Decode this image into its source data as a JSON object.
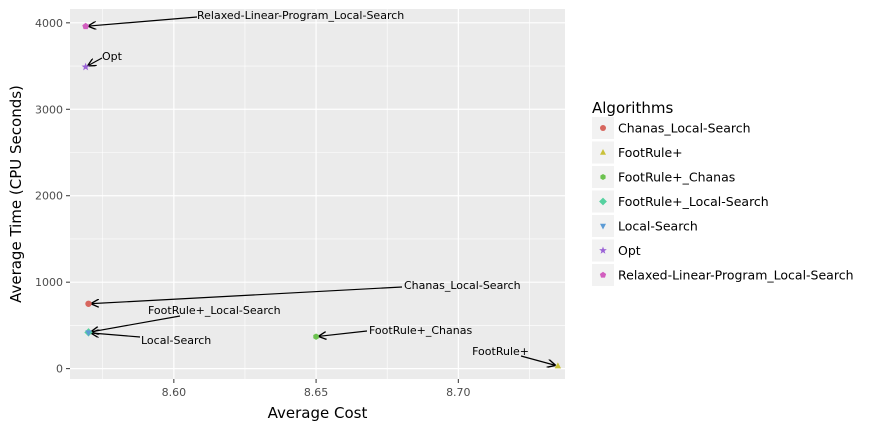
{
  "chart_data": {
    "type": "scatter",
    "title": "",
    "xlabel": "Average Cost",
    "ylabel": "Average Time (CPU Seconds)",
    "xlim": [
      8.5635,
      8.7375
    ],
    "ylim": [
      -120,
      4160
    ],
    "xticks": [
      8.6,
      8.65,
      8.7
    ],
    "xtick_labels": [
      "8.60",
      "8.65",
      "8.70"
    ],
    "yticks": [
      0,
      1000,
      2000,
      3000,
      4000
    ],
    "ytick_labels": [
      "0",
      "1000",
      "2000",
      "3000",
      "4000"
    ],
    "grid": true,
    "legend": {
      "title": "Algorithms",
      "position": "right"
    },
    "series": [
      {
        "name": "Chanas_Local-Search",
        "marker": "circle",
        "color": "#D7665E",
        "x": 8.57,
        "y": 750
      },
      {
        "name": "FootRule+",
        "marker": "triangle",
        "color": "#C9C13A",
        "x": 8.735,
        "y": 30
      },
      {
        "name": "FootRule+_Chanas",
        "marker": "hexagon",
        "color": "#6CC24F",
        "x": 8.65,
        "y": 370
      },
      {
        "name": "FootRule+_Local-Search",
        "marker": "diamond",
        "color": "#56D1A0",
        "x": 8.57,
        "y": 420
      },
      {
        "name": "Local-Search",
        "marker": "triangle-down",
        "color": "#5C9BD5",
        "x": 8.57,
        "y": 415
      },
      {
        "name": "Opt",
        "marker": "star",
        "color": "#9B63D6",
        "x": 8.569,
        "y": 3490
      },
      {
        "name": "Relaxed-Linear-Program_Local-Search",
        "marker": "pentagon",
        "color": "#D25EBF",
        "x": 8.569,
        "y": 3960
      }
    ],
    "annotations": [
      {
        "text": "Relaxed-Linear-Program_Local-Search",
        "series": "Relaxed-Linear-Program_Local-Search"
      },
      {
        "text": "Opt",
        "series": "Opt"
      },
      {
        "text": "Chanas_Local-Search",
        "series": "Chanas_Local-Search"
      },
      {
        "text": "FootRule+_Local-Search",
        "series": "FootRule+_Local-Search"
      },
      {
        "text": "Local-Search",
        "series": "Local-Search"
      },
      {
        "text": "FootRule+_Chanas",
        "series": "FootRule+_Chanas"
      },
      {
        "text": "FootRule+",
        "series": "FootRule+"
      }
    ]
  }
}
